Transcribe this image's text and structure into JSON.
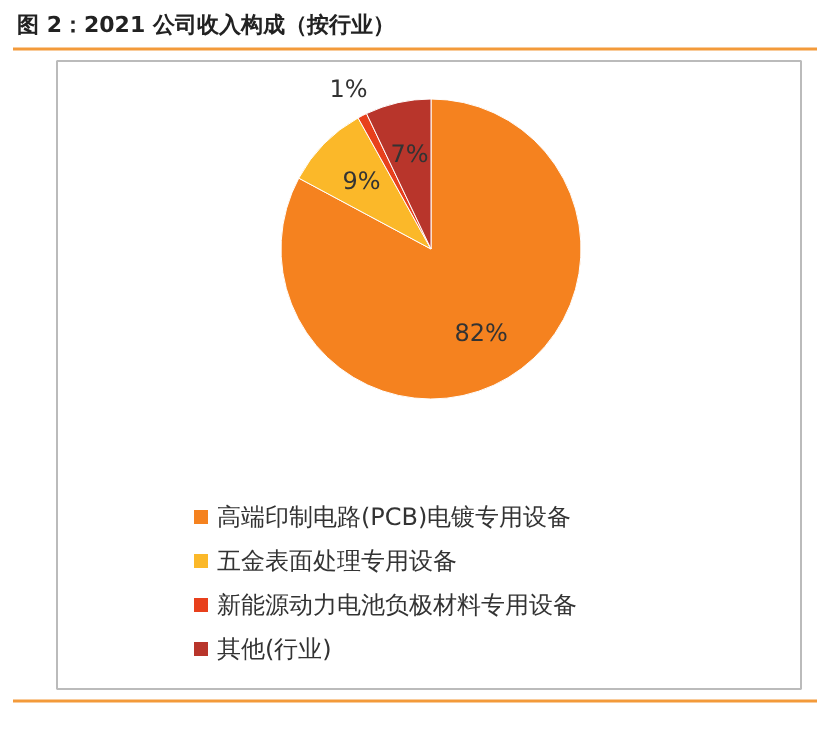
{
  "chart_data": {
    "type": "pie",
    "title": "图 2：2021 公司收入构成（按行业）",
    "categories": [
      "高端印制电路(PCB)电镀专用设备",
      "五金表面处理专用设备",
      "新能源动力电池负极材料专用设备",
      "其他(行业)"
    ],
    "values": [
      82,
      9,
      1,
      7
    ],
    "colors": [
      "#f5821f",
      "#fbb829",
      "#e8401c",
      "#b8352b"
    ],
    "value_labels": [
      "82%",
      "9%",
      "1%",
      "7%"
    ],
    "legend": "bottom"
  }
}
